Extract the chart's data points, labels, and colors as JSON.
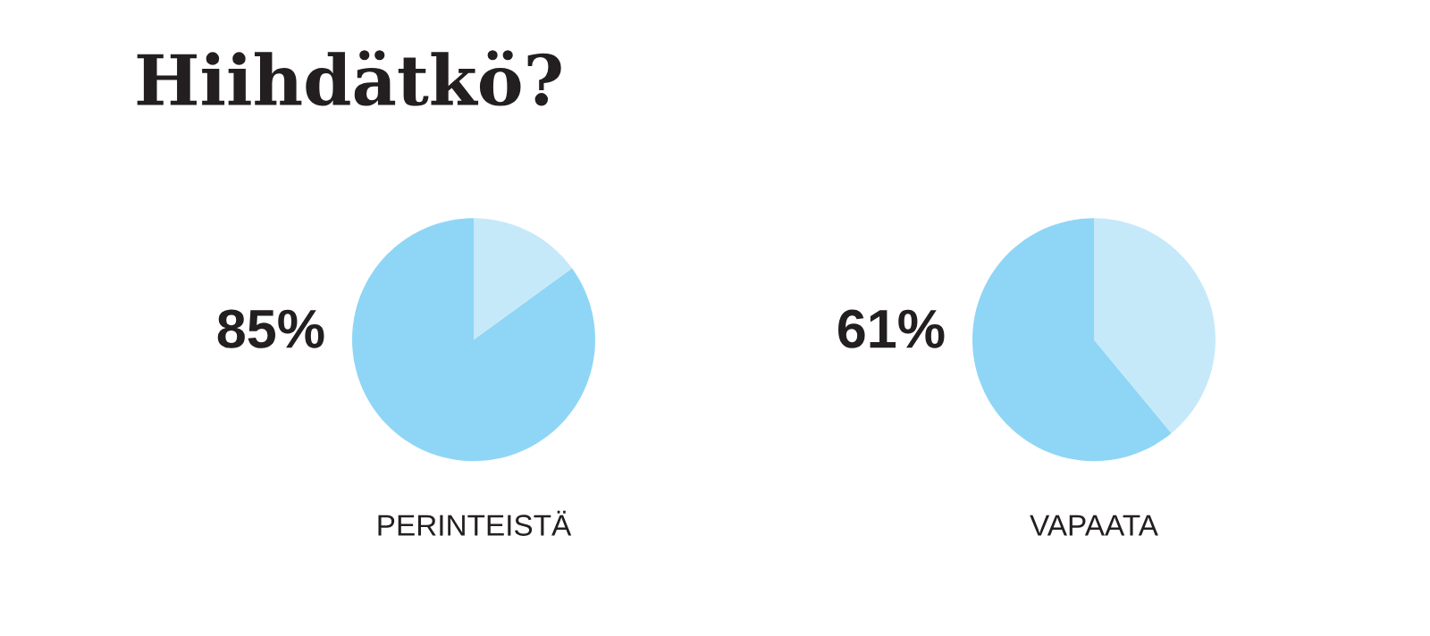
{
  "chart_data": [
    {
      "type": "pie",
      "title": "Hiihdätkö?",
      "xlabel": "PERINTEISTÄ",
      "categories": [
        null,
        null
      ],
      "values": [
        85,
        15
      ],
      "colors": [
        "#8fd6f6",
        "#c6e9fa"
      ],
      "value_labels": [
        "85%",
        null
      ]
    },
    {
      "type": "pie",
      "xlabel": "VAPAATA",
      "categories": [
        null,
        null
      ],
      "values": [
        61,
        39
      ],
      "colors": [
        "#8fd6f6",
        "#c6e9fa"
      ],
      "value_labels": [
        "61%",
        null
      ]
    }
  ]
}
